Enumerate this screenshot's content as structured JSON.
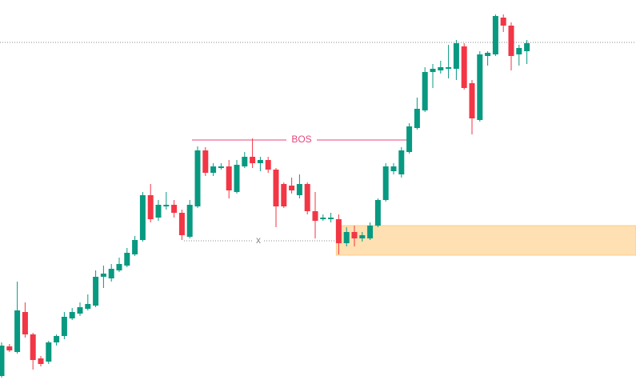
{
  "chart_data": {
    "type": "candlestick",
    "ylim": [
      0,
      480
    ],
    "up_color": "#089981",
    "down_color": "#f23645",
    "series": [
      {
        "open": [
          10,
          47,
          40,
          90,
          62,
          32,
          28,
          52,
          60,
          82,
          88,
          94,
          98,
          134,
          132,
          142,
          148,
          162,
          180,
          236,
          208,
          222,
          224,
          214,
          184,
          222,
          292,
          264,
          270,
          272,
          240,
          272,
          284,
          276,
          280,
          268,
          250,
          248,
          236,
          250,
          216,
          206,
          206,
          206,
          176,
          190,
          182,
          182,
          198,
          230,
          266,
          262,
          290,
          320,
          342,
          390,
          392,
          394,
          394,
          422,
          376,
          330,
          410,
          412,
          458,
          448,
          412,
          416
        ],
        "close": [
          48,
          42,
          92,
          62,
          30,
          25,
          52,
          60,
          84,
          90,
          96,
          100,
          134,
          138,
          144,
          150,
          164,
          180,
          236,
          206,
          224,
          224,
          214,
          186,
          224,
          292,
          264,
          272,
          272,
          242,
          274,
          284,
          276,
          280,
          268,
          222,
          222,
          242,
          250,
          216,
          204,
          208,
          208,
          176,
          190,
          182,
          186,
          198,
          230,
          272,
          272,
          292,
          322,
          344,
          390,
          394,
          396,
          396,
          426,
          370,
          332,
          412,
          414,
          460,
          448,
          410,
          420,
          426
        ],
        "high": [
          52,
          50,
          128,
          102,
          64,
          35,
          54,
          62,
          90,
          95,
          102,
          112,
          142,
          148,
          150,
          158,
          170,
          185,
          240,
          250,
          230,
          240,
          230,
          218,
          230,
          297,
          296,
          276,
          276,
          280,
          280,
          290,
          307,
          284,
          284,
          270,
          252,
          258,
          262,
          252,
          240,
          212,
          214,
          212,
          196,
          198,
          190,
          202,
          232,
          276,
          276,
          296,
          326,
          358,
          396,
          400,
          404,
          424,
          430,
          426,
          380,
          416,
          416,
          462,
          462,
          452,
          424,
          430
        ],
        "low": [
          8,
          40,
          38,
          58,
          18,
          22,
          25,
          48,
          56,
          80,
          85,
          92,
          96,
          120,
          128,
          140,
          146,
          160,
          178,
          202,
          204,
          218,
          208,
          180,
          182,
          220,
          260,
          260,
          268,
          232,
          238,
          270,
          270,
          266,
          264,
          196,
          220,
          238,
          232,
          212,
          182,
          204,
          202,
          162,
          172,
          172,
          178,
          180,
          196,
          228,
          262,
          258,
          288,
          318,
          340,
          370,
          388,
          382,
          380,
          368,
          312,
          328,
          398,
          410,
          440,
          392,
          398,
          400
        ]
      }
    ],
    "annotations": [
      {
        "text": "BOS",
        "value": 305,
        "color": "#e8457a"
      },
      {
        "text": "x",
        "value": 179,
        "color": "#888888"
      }
    ],
    "zone": {
      "low": 161,
      "high": 198,
      "color": "#ffe0b2"
    },
    "level": {
      "value": 427,
      "color": "#888888"
    }
  }
}
